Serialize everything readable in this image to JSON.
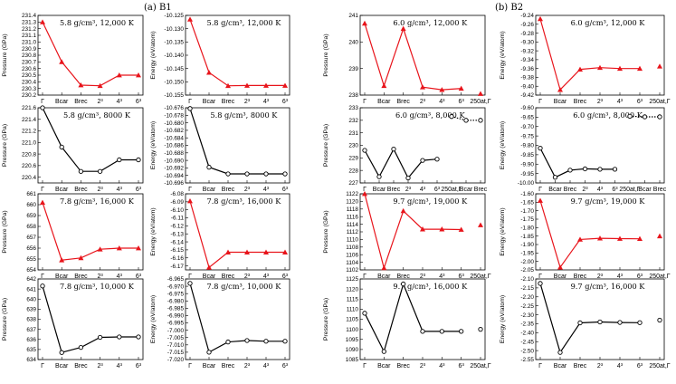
{
  "figure": {
    "section_left": "(a) B1",
    "section_right": "(b) B2"
  },
  "chart_data": [
    {
      "type": "line",
      "section": "B1",
      "column": 0,
      "row": 0,
      "label": "5.8 g/cm³, 12,000 K",
      "ylabel": "Pressure (GPa)",
      "color": "#e8141b",
      "marker": "triangle",
      "categories": [
        "Γ",
        "Bcar",
        "Brec",
        "2³",
        "4³",
        "6³"
      ],
      "ylim": [
        230.2,
        231.4
      ],
      "yticks": [
        231.4,
        231.3,
        231.2,
        231.1,
        231.0,
        230.9,
        230.8,
        230.7,
        230.6,
        230.5,
        230.4,
        230.3,
        230.2
      ],
      "series": [
        {
          "points": [
            [
              0,
              231.3
            ],
            [
              1,
              230.7
            ],
            [
              2,
              230.35
            ],
            [
              3,
              230.34
            ],
            [
              4,
              230.5
            ],
            [
              5,
              230.5
            ]
          ]
        }
      ]
    },
    {
      "type": "line",
      "section": "B1",
      "column": 1,
      "row": 0,
      "label": "5.8 g/cm³, 12,000 K",
      "ylabel": "Energy (eV/atom)",
      "color": "#e8141b",
      "marker": "triangle",
      "categories": [
        "Γ",
        "Bcar",
        "Brec",
        "2³",
        "4³",
        "6³"
      ],
      "ylim": [
        -10.155,
        -10.125
      ],
      "yticks": [
        -10.125,
        -10.13,
        -10.135,
        -10.14,
        -10.145,
        -10.15,
        -10.155
      ],
      "series": [
        {
          "points": [
            [
              0,
              -10.1265
            ],
            [
              1,
              -10.1465
            ],
            [
              2,
              -10.1515
            ],
            [
              3,
              -10.1514
            ],
            [
              4,
              -10.1514
            ],
            [
              5,
              -10.1514
            ]
          ]
        }
      ]
    },
    {
      "type": "line",
      "section": "B1",
      "column": 0,
      "row": 1,
      "label": "5.8 g/cm³, 8000 K",
      "ylabel": "Pressure (GPa)",
      "color": "#000000",
      "marker": "circle",
      "categories": [
        "Γ",
        "Bcar",
        "Brec",
        "2³",
        "4³",
        "6³"
      ],
      "ylim": [
        220.3,
        221.6
      ],
      "yticks": [
        221.6,
        221.4,
        221.2,
        221.0,
        220.8,
        220.6,
        220.4
      ],
      "series": [
        {
          "points": [
            [
              0,
              221.6
            ],
            [
              1,
              220.92
            ],
            [
              2,
              220.5
            ],
            [
              3,
              220.5
            ],
            [
              4,
              220.7
            ],
            [
              5,
              220.7
            ]
          ]
        }
      ]
    },
    {
      "type": "line",
      "section": "B1",
      "column": 1,
      "row": 1,
      "label": "5.8 g/cm³, 8000 K",
      "ylabel": "Energy (eV/atom)",
      "color": "#000000",
      "marker": "circle",
      "categories": [
        "Γ",
        "Bcar",
        "Brec",
        "2³",
        "4³",
        "6³"
      ],
      "ylim": [
        -10.696,
        -10.676
      ],
      "yticks": [
        -10.676,
        -10.678,
        -10.68,
        -10.682,
        -10.684,
        -10.686,
        -10.688,
        -10.69,
        -10.692,
        -10.694,
        -10.696
      ],
      "series": [
        {
          "points": [
            [
              0,
              -10.6762
            ],
            [
              1,
              -10.6918
            ],
            [
              2,
              -10.6936
            ],
            [
              3,
              -10.6936
            ],
            [
              4,
              -10.6936
            ],
            [
              5,
              -10.6936
            ]
          ]
        }
      ]
    },
    {
      "type": "line",
      "section": "B1",
      "column": 0,
      "row": 2,
      "label": "7.8 g/cm³, 16,000 K",
      "ylabel": "Pressure (GPa)",
      "color": "#e8141b",
      "marker": "triangle",
      "categories": [
        "Γ",
        "Bcar",
        "Brec",
        "2³",
        "4³",
        "6³"
      ],
      "ylim": [
        654,
        661
      ],
      "yticks": [
        661,
        660,
        659,
        658,
        657,
        656,
        655,
        654
      ],
      "series": [
        {
          "points": [
            [
              0,
              660.2
            ],
            [
              1,
              654.9
            ],
            [
              2,
              655.1
            ],
            [
              3,
              655.9
            ],
            [
              4,
              656.0
            ],
            [
              5,
              656.0
            ]
          ]
        }
      ]
    },
    {
      "type": "line",
      "section": "B1",
      "column": 1,
      "row": 2,
      "label": "7.8 g/cm³, 16,000 K",
      "ylabel": "Energy (eV/atom)",
      "color": "#e8141b",
      "marker": "triangle",
      "categories": [
        "Γ",
        "Bcar",
        "Brec",
        "2³",
        "4³",
        "6³"
      ],
      "ylim": [
        -6.175,
        -6.08
      ],
      "yticks": [
        -6.08,
        -6.09,
        -6.1,
        -6.11,
        -6.12,
        -6.13,
        -6.14,
        -6.15,
        -6.16,
        -6.17
      ],
      "series": [
        {
          "points": [
            [
              0,
              -6.089
            ],
            [
              1,
              -6.172
            ],
            [
              2,
              -6.153
            ],
            [
              3,
              -6.153
            ],
            [
              4,
              -6.153
            ],
            [
              5,
              -6.153
            ]
          ]
        }
      ]
    },
    {
      "type": "line",
      "section": "B1",
      "column": 0,
      "row": 3,
      "label": "7.8 g/cm³, 10,000 K",
      "ylabel": "Pressure (GPa)",
      "color": "#000000",
      "marker": "circle",
      "categories": [
        "Γ",
        "Bcar",
        "Brec",
        "2³",
        "4³",
        "6³"
      ],
      "ylim": [
        634,
        642
      ],
      "yticks": [
        642,
        641,
        640,
        639,
        638,
        637,
        636,
        635,
        634
      ],
      "series": [
        {
          "points": [
            [
              0,
              641.3
            ],
            [
              1,
              634.7
            ],
            [
              2,
              635.2
            ],
            [
              3,
              636.2
            ],
            [
              4,
              636.25
            ],
            [
              5,
              636.25
            ]
          ]
        }
      ]
    },
    {
      "type": "line",
      "section": "B1",
      "column": 1,
      "row": 3,
      "label": "7.8 g/cm³, 10,000 K",
      "ylabel": "Energy (eV/atom)",
      "color": "#000000",
      "marker": "circle",
      "categories": [
        "Γ",
        "Bcar",
        "Brec",
        "2³",
        "4³",
        "6³"
      ],
      "ylim": [
        -7.02,
        -6.965
      ],
      "yticks": [
        -6.965,
        -6.97,
        -6.975,
        -6.98,
        -6.985,
        -6.99,
        -6.995,
        -7.0,
        -7.005,
        -7.01,
        -7.015,
        -7.02
      ],
      "series": [
        {
          "points": [
            [
              0,
              -6.968
            ],
            [
              1,
              -7.015
            ],
            [
              2,
              -7.008
            ],
            [
              3,
              -7.007
            ],
            [
              4,
              -7.0075
            ],
            [
              5,
              -7.0075
            ]
          ]
        }
      ]
    },
    {
      "type": "line",
      "section": "B2",
      "column": 0,
      "row": 0,
      "label": "6.0 g/cm³, 12,000 K",
      "ylabel": "Pressure (GPa)",
      "color": "#e8141b",
      "marker": "triangle",
      "categories": [
        "Γ",
        "Bcar",
        "Brec",
        "2³",
        "4³",
        "6³",
        "250at,Γ"
      ],
      "ylim": [
        238,
        241
      ],
      "yticks": [
        241,
        240,
        239,
        238
      ],
      "series": [
        {
          "points": [
            [
              0,
              240.7
            ],
            [
              1,
              238.35
            ],
            [
              2,
              240.5
            ],
            [
              3,
              238.3
            ],
            [
              4,
              238.2
            ],
            [
              5,
              238.25
            ]
          ]
        },
        {
          "points": [
            [
              6,
              238.05
            ]
          ],
          "line": false
        }
      ]
    },
    {
      "type": "line",
      "section": "B2",
      "column": 1,
      "row": 0,
      "label": "6.0 g/cm³, 12,000 K",
      "ylabel": "Energy (eV/atom)",
      "color": "#e8141b",
      "marker": "triangle",
      "categories": [
        "Γ",
        "Bcar",
        "Brec",
        "2³",
        "4³",
        "6³",
        "250at,Γ"
      ],
      "ylim": [
        -9.42,
        -9.24
      ],
      "yticks": [
        -9.24,
        -9.26,
        -9.28,
        -9.3,
        -9.32,
        -9.34,
        -9.36,
        -9.38,
        -9.4,
        -9.42
      ],
      "series": [
        {
          "points": [
            [
              0,
              -9.248
            ],
            [
              1,
              -9.408
            ],
            [
              2,
              -9.362
            ],
            [
              3,
              -9.358
            ],
            [
              4,
              -9.36
            ],
            [
              5,
              -9.36
            ]
          ]
        },
        {
          "points": [
            [
              6,
              -9.355
            ]
          ],
          "line": false
        }
      ]
    },
    {
      "type": "line",
      "section": "B2",
      "column": 0,
      "row": 1,
      "label": "6.0 g/cm³, 8,000 K",
      "ylabel": "Pressure (GPa)",
      "color": "#000000",
      "marker": "circle",
      "categories": [
        "Γ",
        "Bcar",
        "Brec",
        "2³",
        "4³",
        "6³",
        "250at,Γ",
        "Bcar",
        "Brec"
      ],
      "ylim": [
        227,
        233
      ],
      "yticks": [
        233,
        232,
        231,
        230,
        229,
        228,
        227
      ],
      "series": [
        {
          "points": [
            [
              0,
              229.6
            ],
            [
              1,
              227.5
            ],
            [
              2,
              229.7
            ],
            [
              3,
              227.4
            ],
            [
              4,
              228.8
            ],
            [
              5,
              228.9
            ]
          ]
        },
        {
          "points": [
            [
              6,
              232.3
            ],
            [
              7,
              232.0
            ],
            [
              8,
              232.0
            ]
          ],
          "dashed": true
        }
      ]
    },
    {
      "type": "line",
      "section": "B2",
      "column": 1,
      "row": 1,
      "label": "6.0 g/cm³, 8,000 K",
      "ylabel": "Energy (eV/atom)",
      "color": "#000000",
      "marker": "circle",
      "categories": [
        "Γ",
        "Bcar",
        "Brec",
        "2³",
        "4³",
        "6³",
        "250at,Γ",
        "Bcar",
        "Brec"
      ],
      "ylim": [
        -10.0,
        -9.6
      ],
      "yticks": [
        -9.6,
        -9.65,
        -9.7,
        -9.75,
        -9.8,
        -9.85,
        -9.9,
        -9.95,
        -10.0
      ],
      "series": [
        {
          "points": [
            [
              0,
              -9.815
            ],
            [
              1,
              -9.97
            ],
            [
              2,
              -9.932
            ],
            [
              3,
              -9.925
            ],
            [
              4,
              -9.927
            ],
            [
              5,
              -9.927
            ]
          ]
        },
        {
          "points": [
            [
              6,
              -9.645
            ],
            [
              7,
              -9.648
            ],
            [
              8,
              -9.648
            ]
          ],
          "dashed": true
        }
      ]
    },
    {
      "type": "line",
      "section": "B2",
      "column": 0,
      "row": 2,
      "label": "9.7 g/cm³, 19,000 K",
      "ylabel": "Pressure (GPa)",
      "color": "#e8141b",
      "marker": "triangle",
      "categories": [
        "Γ",
        "Bcar",
        "Brec",
        "2³",
        "4³",
        "6³",
        "250at,Γ"
      ],
      "ylim": [
        1102,
        1122
      ],
      "yticks": [
        1122,
        1120,
        1118,
        1116,
        1114,
        1112,
        1110,
        1108,
        1106,
        1104,
        1102
      ],
      "series": [
        {
          "points": [
            [
              0,
              1122
            ],
            [
              1,
              1102.5
            ],
            [
              2,
              1117.5
            ],
            [
              3,
              1112.7
            ],
            [
              4,
              1112.7
            ],
            [
              5,
              1112.6
            ]
          ]
        },
        {
          "points": [
            [
              6,
              1113.8
            ]
          ],
          "line": false
        }
      ]
    },
    {
      "type": "line",
      "section": "B2",
      "column": 1,
      "row": 2,
      "label": "9.7 g/cm³, 19,000 K",
      "ylabel": "Energy (eV/atom)",
      "color": "#e8141b",
      "marker": "triangle",
      "categories": [
        "Γ",
        "Bcar",
        "Brec",
        "2³",
        "4³",
        "6³",
        "250at,Γ"
      ],
      "ylim": [
        -2.05,
        -1.6
      ],
      "yticks": [
        -1.6,
        -1.65,
        -1.7,
        -1.75,
        -1.8,
        -1.85,
        -1.9,
        -1.95,
        -2.0,
        -2.05
      ],
      "series": [
        {
          "points": [
            [
              0,
              -1.64
            ],
            [
              1,
              -2.035
            ],
            [
              2,
              -1.87
            ],
            [
              3,
              -1.863
            ],
            [
              4,
              -1.865
            ],
            [
              5,
              -1.866
            ]
          ]
        },
        {
          "points": [
            [
              6,
              -1.85
            ]
          ],
          "line": false
        }
      ]
    },
    {
      "type": "line",
      "section": "B2",
      "column": 0,
      "row": 3,
      "label": "9.7 g/cm³, 16,000 K",
      "ylabel": "Pressure (GPa)",
      "color": "#000000",
      "marker": "circle",
      "categories": [
        "Γ",
        "Bcar",
        "Brec",
        "2³",
        "4³",
        "6³",
        "250at,Γ"
      ],
      "ylim": [
        1085,
        1125
      ],
      "yticks": [
        1125,
        1120,
        1115,
        1110,
        1105,
        1100,
        1095,
        1090,
        1085
      ],
      "series": [
        {
          "points": [
            [
              0,
              1108
            ],
            [
              1,
              1089
            ],
            [
              2,
              1122.5
            ],
            [
              3,
              1099
            ],
            [
              4,
              1099
            ],
            [
              5,
              1099
            ]
          ]
        },
        {
          "points": [
            [
              6,
              1100
            ]
          ],
          "line": false
        }
      ]
    },
    {
      "type": "line",
      "section": "B2",
      "column": 1,
      "row": 3,
      "label": "9.7 g/cm³, 16,000 K",
      "ylabel": "Energy (eV/atom)",
      "color": "#000000",
      "marker": "circle",
      "categories": [
        "Γ",
        "Bcar",
        "Brec",
        "2³",
        "4³",
        "6³",
        "250at,Γ"
      ],
      "ylim": [
        -2.55,
        -2.1
      ],
      "yticks": [
        -2.1,
        -2.15,
        -2.2,
        -2.25,
        -2.3,
        -2.35,
        -2.4,
        -2.45,
        -2.5,
        -2.55
      ],
      "series": [
        {
          "points": [
            [
              0,
              -2.125
            ],
            [
              1,
              -2.51
            ],
            [
              2,
              -2.345
            ],
            [
              3,
              -2.34
            ],
            [
              4,
              -2.343
            ],
            [
              5,
              -2.344
            ]
          ]
        },
        {
          "points": [
            [
              6,
              -2.33
            ]
          ],
          "line": false
        }
      ]
    }
  ]
}
